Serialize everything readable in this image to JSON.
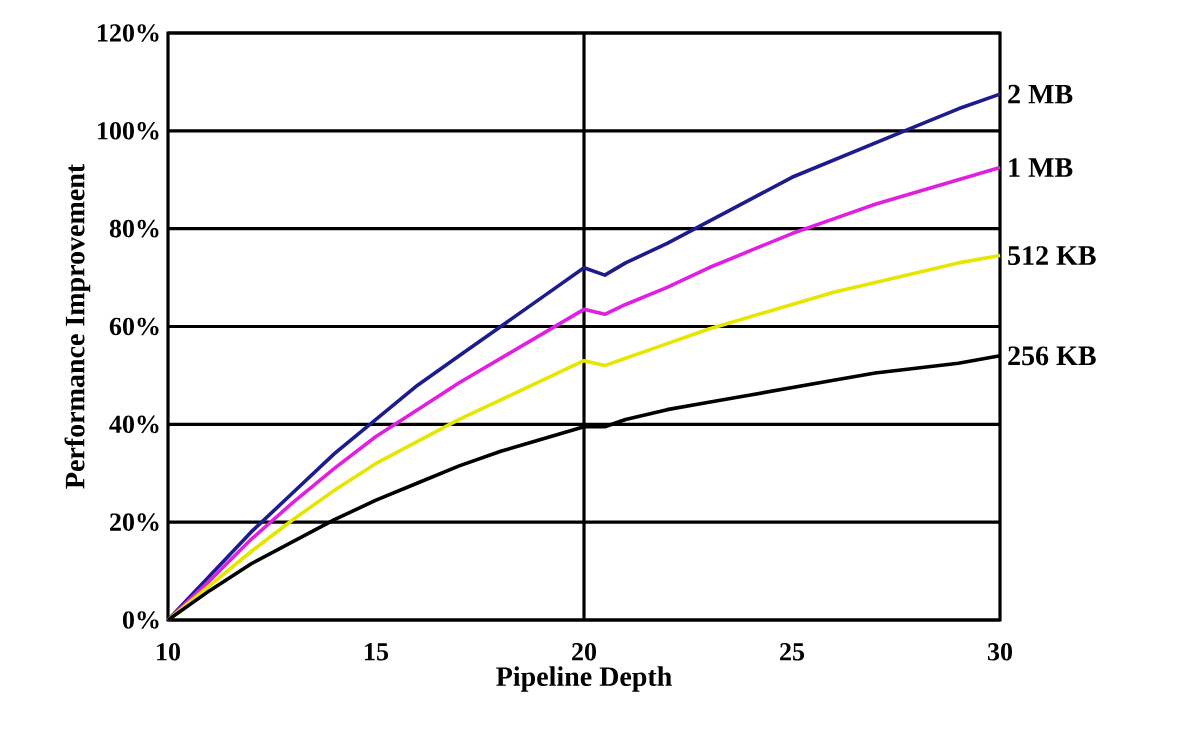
{
  "chart_data": {
    "type": "line",
    "xlabel": "Pipeline Depth",
    "ylabel": "Performance Improvement",
    "xlim": [
      10,
      30
    ],
    "xticks": [
      10,
      15,
      20,
      25,
      30
    ],
    "ylim": [
      0,
      120
    ],
    "yticks": [
      {
        "value": 0,
        "label": "0%"
      },
      {
        "value": 20,
        "label": "20%"
      },
      {
        "value": 40,
        "label": "40%"
      },
      {
        "value": 60,
        "label": "60%"
      },
      {
        "value": 80,
        "label": "80%"
      },
      {
        "value": 100,
        "label": "100%"
      },
      {
        "value": 120,
        "label": "120%"
      }
    ],
    "grid": "y",
    "legend": false,
    "marker": "none",
    "line_style": "solid",
    "ref_lines": [
      {
        "axis": "x",
        "value": 20,
        "color": "#000000"
      }
    ],
    "x": [
      10,
      11,
      12,
      13,
      14,
      15,
      16,
      17,
      18,
      19,
      20,
      20.5,
      21,
      22,
      23,
      24,
      25,
      26,
      27,
      28,
      29,
      30
    ],
    "series": [
      {
        "name": "2 MB",
        "color": "#1c1c8c",
        "values": [
          0,
          9,
          18,
          26,
          34,
          41,
          48,
          54,
          60,
          66,
          72,
          70.5,
          73,
          77,
          81.5,
          86,
          90.5,
          94,
          97.5,
          101,
          104.5,
          107.5
        ]
      },
      {
        "name": "1 MB",
        "color": "#e020e0",
        "values": [
          0,
          8,
          16.5,
          24,
          31,
          37.5,
          43,
          48.5,
          53.5,
          58.5,
          63.5,
          62.5,
          64.5,
          68,
          72,
          75.5,
          79,
          82,
          85,
          87.5,
          90,
          92.5
        ]
      },
      {
        "name": "512 KB",
        "color": "#e6e600",
        "values": [
          0,
          7,
          14,
          20.5,
          26.5,
          32,
          36.5,
          41,
          45,
          49,
          53,
          52,
          53.5,
          56.5,
          59.5,
          62,
          64.5,
          67,
          69,
          71,
          73,
          74.5
        ]
      },
      {
        "name": "256 KB",
        "color": "#000000",
        "values": [
          0,
          6,
          11.5,
          16,
          20.5,
          24.5,
          28,
          31.5,
          34.5,
          37,
          39.5,
          39.5,
          41,
          43,
          44.5,
          46,
          47.5,
          49,
          50.5,
          51.5,
          52.5,
          54
        ]
      }
    ]
  }
}
